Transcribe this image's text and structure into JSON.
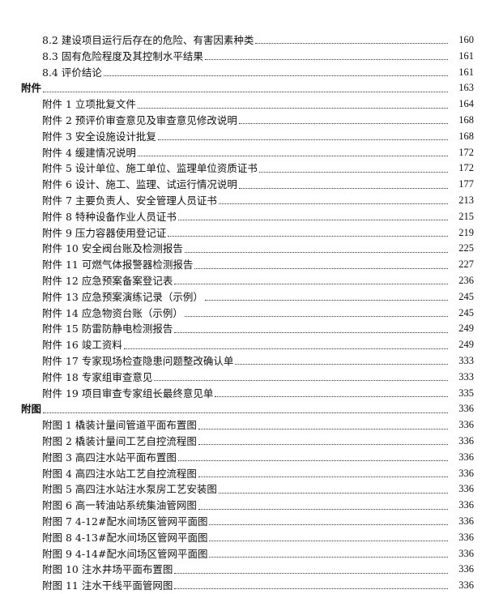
{
  "toc": [
    {
      "level": 2,
      "title": "8.2  建设项目运行后存在的危险、有害因素种类",
      "page": "160"
    },
    {
      "level": 2,
      "title": "8.3  固有危险程度及其控制水平结果",
      "page": "161"
    },
    {
      "level": 2,
      "title": "8.4  评价结论",
      "page": "161"
    },
    {
      "level": 1,
      "title": "附件",
      "page": "163"
    },
    {
      "level": 2,
      "title": "附件 1  立项批复文件",
      "page": "164"
    },
    {
      "level": 2,
      "title": "附件 2  预评价审查意见及审查意见修改说明",
      "page": "168"
    },
    {
      "level": 2,
      "title": "附件 3  安全设施设计批复",
      "page": "168"
    },
    {
      "level": 2,
      "title": "附件 4  缓建情况说明",
      "page": "172"
    },
    {
      "level": 2,
      "title": "附件 5  设计单位、施工单位、监理单位资质证书",
      "page": "172"
    },
    {
      "level": 2,
      "title": "附件 6  设计、施工、监理、试运行情况说明",
      "page": "177"
    },
    {
      "level": 2,
      "title": "附件 7  主要负责人、安全管理人员证书",
      "page": "213"
    },
    {
      "level": 2,
      "title": "附件 8  特种设备作业人员证书",
      "page": "215"
    },
    {
      "level": 2,
      "title": "附件 9  压力容器使用登记证",
      "page": "219"
    },
    {
      "level": 2,
      "title": "附件 10  安全阀台账及检测报告",
      "page": "225"
    },
    {
      "level": 2,
      "title": "附件 11  可燃气体报警器检测报告",
      "page": "227"
    },
    {
      "level": 2,
      "title": "附件 12  应急预案备案登记表",
      "page": "236"
    },
    {
      "level": 2,
      "title": "附件 13  应急预案演练记录（示例）",
      "page": "245"
    },
    {
      "level": 2,
      "title": "附件 14  应急物资台账（示例）",
      "page": "245"
    },
    {
      "level": 2,
      "title": "附件 15  防雷防静电检测报告",
      "page": "249"
    },
    {
      "level": 2,
      "title": "附件 16  竣工资料",
      "page": "249"
    },
    {
      "level": 2,
      "title": "附件 17  专家现场检查隐患问题整改确认单",
      "page": "333"
    },
    {
      "level": 2,
      "title": "附件 18  专家组审查意见",
      "page": "333"
    },
    {
      "level": 2,
      "title": "附件 19  项目审查专家组长最终意见单",
      "page": "335"
    },
    {
      "level": 1,
      "title": "附图",
      "page": "336"
    },
    {
      "level": 2,
      "title": "附图 1  橇装计量间管道平面布置图",
      "page": "336"
    },
    {
      "level": 2,
      "title": "附图 2  橇装计量间工艺自控流程图",
      "page": "336"
    },
    {
      "level": 2,
      "title": "附图 3  高四注水站平面布置图",
      "page": "336"
    },
    {
      "level": 2,
      "title": "附图 4  高四注水站工艺自控流程图",
      "page": "336"
    },
    {
      "level": 2,
      "title": "附图 5  高四注水站注水泵房工艺安装图",
      "page": "336"
    },
    {
      "level": 2,
      "title": "附图 6  高一转油站系统集油管网图",
      "page": "336"
    },
    {
      "level": 2,
      "title": "附图 7 4-12#配水间场区管网平面图",
      "page": "336"
    },
    {
      "level": 2,
      "title": "附图 8 4-13#配水间场区管网平面图",
      "page": "336"
    },
    {
      "level": 2,
      "title": "附图 9 4-14#配水间场区管网平面图",
      "page": "336"
    },
    {
      "level": 2,
      "title": "附图 10  注水井场平面布置图",
      "page": "336"
    },
    {
      "level": 2,
      "title": "附图 11  注水干线平面管网图",
      "page": "336"
    }
  ]
}
